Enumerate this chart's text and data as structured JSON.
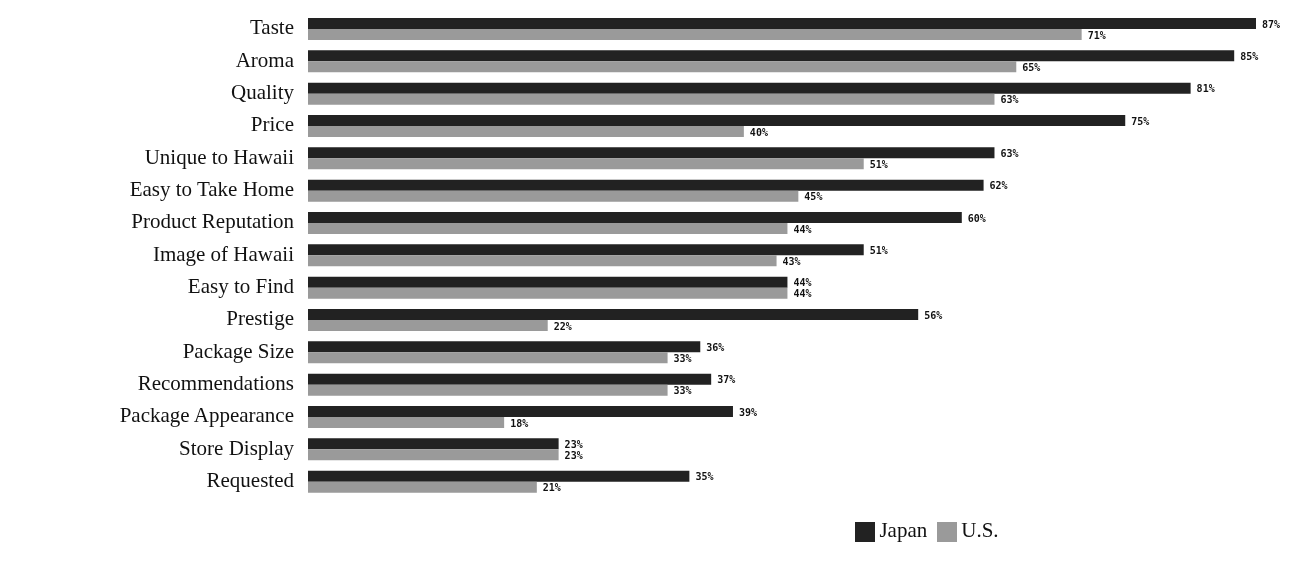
{
  "chart_data": {
    "type": "bar",
    "orientation": "horizontal",
    "categories": [
      "Taste",
      "Aroma",
      "Quality",
      "Price",
      "Unique to Hawaii",
      "Easy to Take Home",
      "Product Reputation",
      "Image of Hawaii",
      "Easy to Find",
      "Prestige",
      "Package Size",
      "Recommendations",
      "Package Appearance",
      "Store Display",
      "Requested"
    ],
    "series": [
      {
        "name": "Japan",
        "color": "#222222",
        "values": [
          87,
          85,
          81,
          75,
          63,
          62,
          60,
          51,
          44,
          56,
          36,
          37,
          39,
          23,
          35
        ],
        "value_labels": [
          "87%",
          "85%",
          "81%",
          "75%",
          "63%",
          "62%",
          "60%",
          "51%",
          "44%",
          "56%",
          "36%",
          "37%",
          "39%",
          "23%",
          "35%"
        ]
      },
      {
        "name": "U.S.",
        "color": "#9a9a9a",
        "values": [
          71,
          65,
          63,
          40,
          51,
          45,
          44,
          43,
          44,
          22,
          33,
          33,
          18,
          23,
          21
        ],
        "value_labels": [
          "71%",
          "65%",
          "63%",
          "40%",
          "51%",
          "45%",
          "44%",
          "43%",
          "44%",
          "22%",
          "33%",
          "33%",
          "18%",
          "23%",
          "21%"
        ]
      }
    ],
    "legend": "bottom",
    "grid": false
  }
}
